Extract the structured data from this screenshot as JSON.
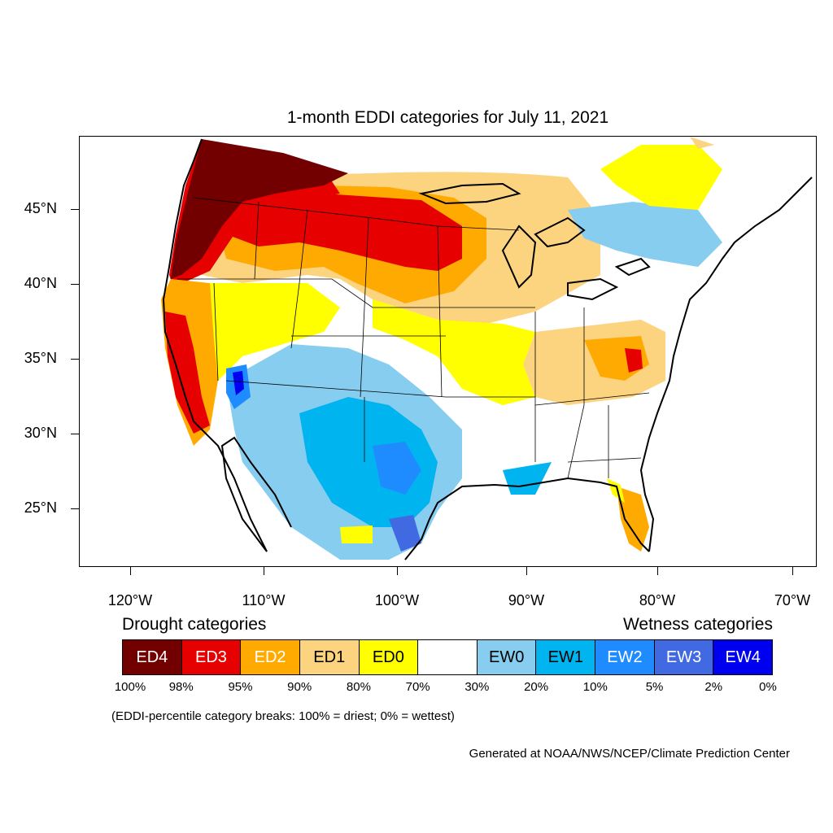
{
  "title": "1-month EDDI categories for July 11, 2021",
  "map": {
    "projection": "lat-lon",
    "lat_ticks": [
      "45°N",
      "40°N",
      "35°N",
      "30°N",
      "25°N"
    ],
    "lon_ticks": [
      "120°W",
      "110°W",
      "100°W",
      "90°W",
      "80°W",
      "70°W"
    ]
  },
  "legend": {
    "drought_heading": "Drought categories",
    "wetness_heading": "Wetness categories",
    "categories": [
      {
        "label": "ED4",
        "color": "#730000",
        "text_color": "#ffffff"
      },
      {
        "label": "ED3",
        "color": "#e60000",
        "text_color": "#ffffff"
      },
      {
        "label": "ED2",
        "color": "#ffaa00",
        "text_color": "#ffffff"
      },
      {
        "label": "ED1",
        "color": "#fcd37f",
        "text_color": "#000000"
      },
      {
        "label": "ED0",
        "color": "#ffff00",
        "text_color": "#000000"
      },
      {
        "label": "",
        "color": "#ffffff",
        "text_color": "#000000"
      },
      {
        "label": "EW0",
        "color": "#87cdf0",
        "text_color": "#000000"
      },
      {
        "label": "EW1",
        "color": "#00b4f0",
        "text_color": "#000000"
      },
      {
        "label": "EW2",
        "color": "#1e8cff",
        "text_color": "#ffffff"
      },
      {
        "label": "EW3",
        "color": "#4169e1",
        "text_color": "#ffffff"
      },
      {
        "label": "EW4",
        "color": "#0000f0",
        "text_color": "#ffffff"
      }
    ],
    "percentiles": [
      "100%",
      "98%",
      "95%",
      "90%",
      "80%",
      "70%",
      "30%",
      "20%",
      "10%",
      "5%",
      "2%",
      "0%"
    ]
  },
  "note": "(EDDI-percentile category breaks: 100% = driest; 0% = wettest)",
  "credit": "Generated at NOAA/NWS/NCEP/Climate Prediction Center"
}
